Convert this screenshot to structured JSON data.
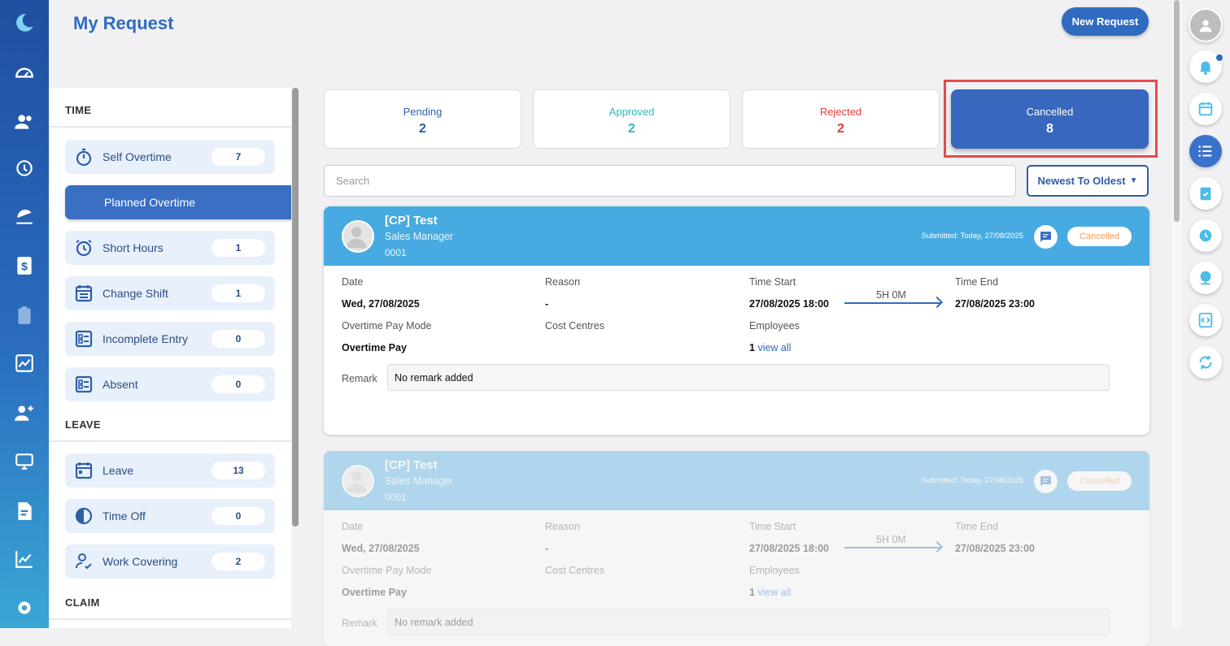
{
  "header": {
    "title": "My Request",
    "new_request_label": "New Request"
  },
  "sidebar": {
    "sections": [
      {
        "title": "TIME"
      },
      {
        "title": "LEAVE"
      },
      {
        "title": "CLAIM"
      }
    ],
    "time_items": [
      {
        "label": "Self Overtime",
        "count": "7",
        "icon": "stopwatch-icon"
      },
      {
        "label": "Planned Overtime",
        "count": "",
        "icon": "",
        "active": true
      },
      {
        "label": "Short Hours",
        "count": "1",
        "icon": "alarm-clock-icon"
      },
      {
        "label": "Change Shift",
        "count": "1",
        "icon": "calendar-list-icon"
      },
      {
        "label": "Incomplete Entry",
        "count": "0",
        "icon": "checklist-icon"
      },
      {
        "label": "Absent",
        "count": "0",
        "icon": "checklist-icon"
      }
    ],
    "leave_items": [
      {
        "label": "Leave",
        "count": "13",
        "icon": "calendar-icon"
      },
      {
        "label": "Time Off",
        "count": "0",
        "icon": "pie-clock-icon"
      },
      {
        "label": "Work Covering",
        "count": "2",
        "icon": "user-check-icon"
      }
    ]
  },
  "stats": [
    {
      "label": "Pending",
      "value": "2",
      "color": "#2f5ea8"
    },
    {
      "label": "Approved",
      "value": "2",
      "color": "#2fb8b8"
    },
    {
      "label": "Rejected",
      "value": "2",
      "color": "#e03c3c"
    },
    {
      "label": "Cancelled",
      "value": "8",
      "color": "#ffffff",
      "selected": true
    }
  ],
  "search": {
    "placeholder": "Search"
  },
  "sort": {
    "label": "Newest To Oldest"
  },
  "labels": {
    "date": "Date",
    "reason": "Reason",
    "time_start": "Time Start",
    "time_end": "Time End",
    "ot_pay_mode": "Overtime Pay Mode",
    "cost_centres": "Cost Centres",
    "employees": "Employees",
    "remark": "Remark",
    "view_all": "view all"
  },
  "requests": [
    {
      "name": "[CP] Test",
      "role": "Sales Manager",
      "code": "0001",
      "submitted": "Submitted: Today, 27/08/2025",
      "status": "Cancelled",
      "date": "Wed, 27/08/2025",
      "reason": "-",
      "time_start": "27/08/2025 18:00",
      "duration": "5H 0M",
      "time_end": "27/08/2025 23:00",
      "pay_mode": "Overtime Pay",
      "employees_count": "1",
      "remark": "No remark added"
    },
    {
      "name": "[CP] Test",
      "role": "Sales Manager",
      "code": "0001",
      "submitted": "Submitted: Today, 27/08/2025",
      "status": "Cancelled",
      "date": "Wed, 27/08/2025",
      "reason": "-",
      "time_start": "27/08/2025 18:00",
      "duration": "5H 0M",
      "time_end": "27/08/2025 23:00",
      "pay_mode": "Overtime Pay",
      "employees_count": "1",
      "remark": "No remark added"
    }
  ]
}
